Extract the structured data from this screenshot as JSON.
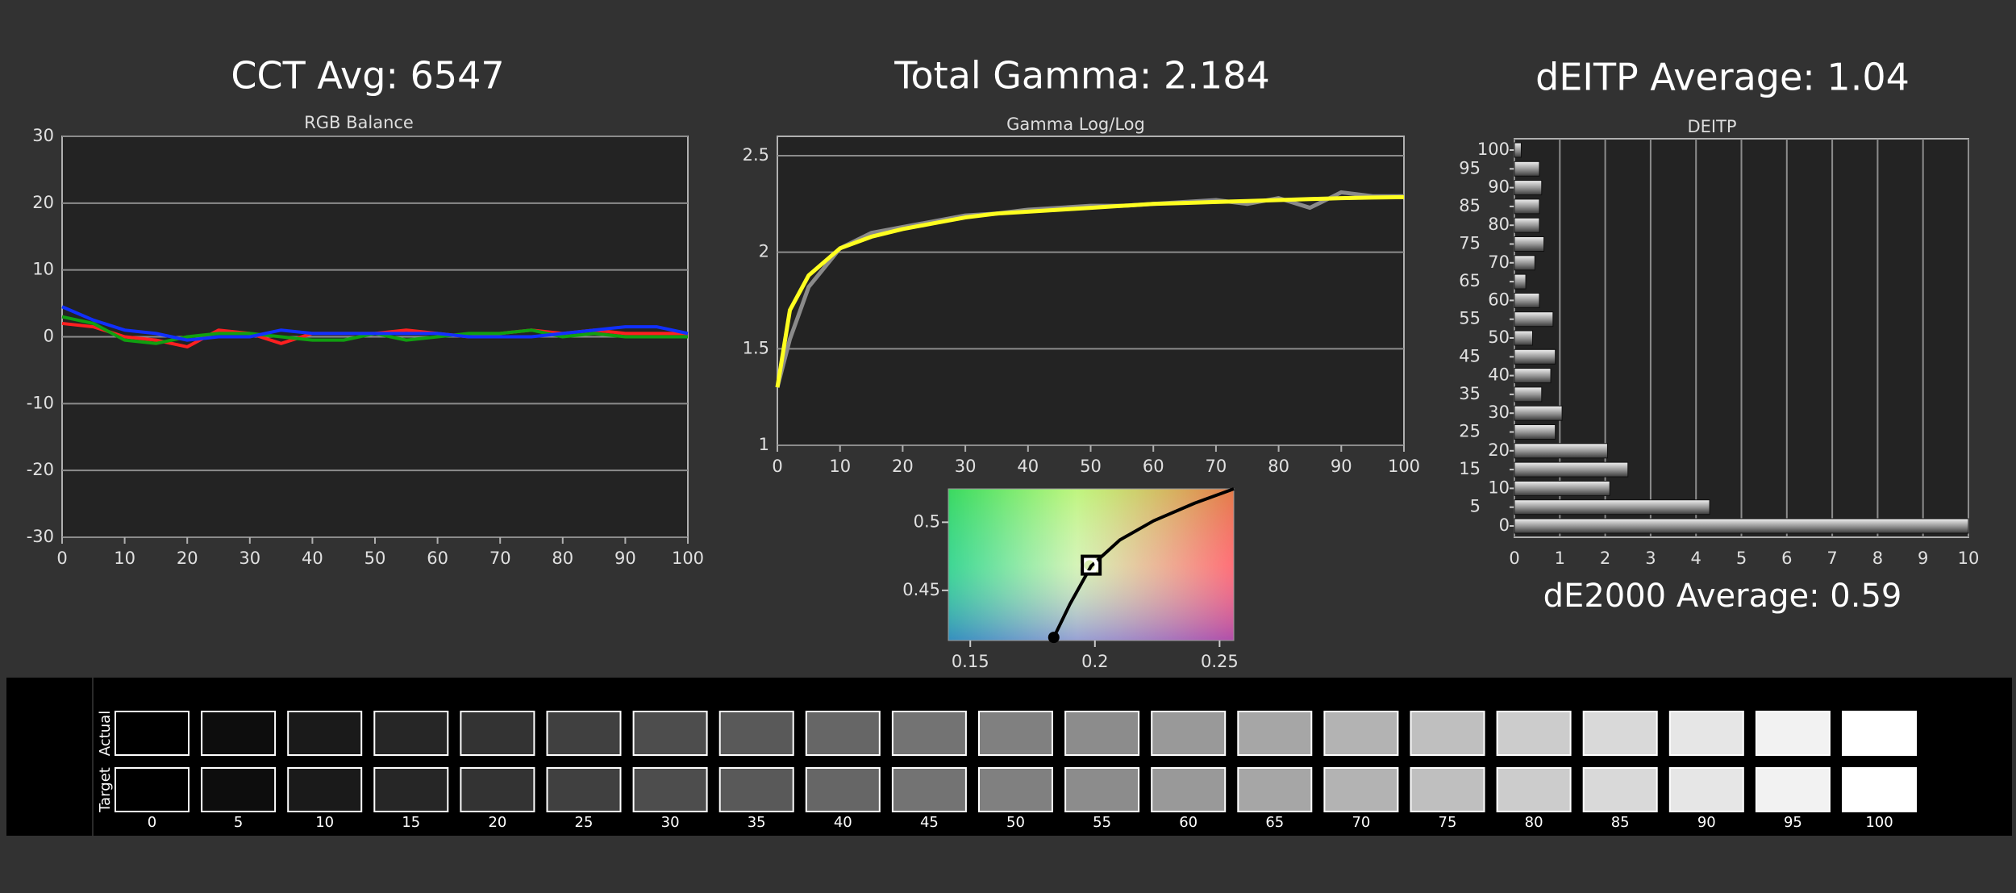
{
  "chart_data": [
    {
      "type": "line",
      "title": "CCT Avg: 6547",
      "subtitle": "RGB Balance",
      "x": [
        0,
        5,
        10,
        15,
        20,
        25,
        30,
        35,
        40,
        45,
        50,
        55,
        60,
        65,
        70,
        75,
        80,
        85,
        90,
        95,
        100
      ],
      "series": [
        {
          "color": "#ff2020",
          "values": [
            2,
            1.5,
            0,
            -0.5,
            -1.5,
            1,
            0.5,
            -1,
            0.5,
            0.5,
            0.5,
            1,
            0.5,
            0,
            0.5,
            1,
            0.5,
            1,
            0.5,
            0.5,
            0.5
          ]
        },
        {
          "color": "#10a010",
          "values": [
            3,
            2,
            -0.5,
            -1,
            0,
            0.5,
            0.5,
            0,
            -0.5,
            -0.5,
            0.5,
            -0.5,
            0,
            0.5,
            0.5,
            1,
            0,
            0.5,
            0,
            0,
            0
          ]
        },
        {
          "color": "#1030ff",
          "values": [
            4.5,
            2.5,
            1,
            0.5,
            -0.5,
            0,
            0,
            1,
            0.5,
            0.5,
            0.5,
            0.5,
            0.5,
            0,
            0,
            0,
            0.5,
            1,
            1.5,
            1.5,
            0.5
          ]
        }
      ],
      "xlim": [
        0,
        100
      ],
      "xticks": [
        0,
        10,
        20,
        30,
        40,
        50,
        60,
        70,
        80,
        90,
        100
      ],
      "ylim": [
        -30,
        30
      ],
      "yticks": [
        -30,
        -20,
        -10,
        0,
        10,
        20,
        30
      ],
      "grid": true
    },
    {
      "type": "line",
      "title": "Total Gamma: 2.184",
      "subtitle": "Gamma Log/Log",
      "x": [
        0,
        2,
        5,
        10,
        15,
        20,
        25,
        30,
        35,
        40,
        45,
        50,
        55,
        60,
        65,
        70,
        75,
        80,
        85,
        90,
        95,
        100
      ],
      "series": [
        {
          "color": "#8a8a8a",
          "values": [
            1.3,
            1.55,
            1.82,
            2.02,
            2.1,
            2.13,
            2.16,
            2.19,
            2.2,
            2.22,
            2.23,
            2.24,
            2.24,
            2.25,
            2.26,
            2.27,
            2.25,
            2.28,
            2.23,
            2.31,
            2.29,
            2.29
          ]
        },
        {
          "color": "#ffff20",
          "values": [
            1.3,
            1.7,
            1.88,
            2.02,
            2.08,
            2.12,
            2.15,
            2.18,
            2.2,
            2.21,
            2.22,
            2.23,
            2.24,
            2.25,
            2.255,
            2.26,
            2.265,
            2.27,
            2.275,
            2.28,
            2.283,
            2.285
          ]
        }
      ],
      "xlim": [
        0,
        100
      ],
      "xticks": [
        0,
        10,
        20,
        30,
        40,
        50,
        60,
        70,
        80,
        90,
        100
      ],
      "ylim": [
        1,
        2.6
      ],
      "yticks": [
        1,
        1.5,
        2,
        2.5
      ],
      "grid": true
    },
    {
      "type": "scatter",
      "series": [
        {
          "color": "#000000",
          "x": [
            0.1835,
            0.19,
            0.1985,
            0.21,
            0.2235,
            0.24,
            0.2557
          ],
          "values": [
            0.4155,
            0.44,
            0.4679,
            0.487,
            0.501,
            0.514,
            0.5245
          ]
        },
        {
          "color": "#ffffff",
          "x": [
            0.1978
          ],
          "values": [
            0.4683
          ]
        },
        {
          "color": "#000000",
          "x": [
            0.1985
          ],
          "values": [
            0.4685
          ]
        }
      ],
      "xlim": [
        0.1412,
        0.2557
      ],
      "xticks": [
        0.15,
        0.2,
        0.25
      ],
      "ylim": [
        0.4132,
        0.5245
      ],
      "yticks": [
        0.45,
        0.5
      ]
    },
    {
      "type": "barh",
      "title": "dEITP Average: 1.04",
      "subtitle": "DEITP",
      "annotation": "dE2000 Average: 0.59",
      "categories": [
        "0",
        "5",
        "10",
        "15",
        "20",
        "25",
        "30",
        "35",
        "40",
        "45",
        "50",
        "55",
        "60",
        "65",
        "70",
        "75",
        "80",
        "85",
        "90",
        "95",
        "100"
      ],
      "values": [
        10,
        4.3,
        2.1,
        2.5,
        2.05,
        0.9,
        1.05,
        0.6,
        0.8,
        0.9,
        0.4,
        0.85,
        0.55,
        0.25,
        0.45,
        0.65,
        0.55,
        0.55,
        0.6,
        0.55,
        0.15
      ],
      "xlim": [
        0,
        10
      ],
      "xticks": [
        0,
        1,
        2,
        3,
        4,
        5,
        6,
        7,
        8,
        9,
        10
      ],
      "grid": true
    }
  ],
  "swatches": {
    "row_labels": [
      "Actual",
      "Target"
    ],
    "categories": [
      "0",
      "5",
      "10",
      "15",
      "20",
      "25",
      "30",
      "35",
      "40",
      "45",
      "50",
      "55",
      "60",
      "65",
      "70",
      "75",
      "80",
      "85",
      "90",
      "95",
      "100"
    ],
    "actual_colors": [
      "#000000",
      "#0d0d0d",
      "#1a1a1a",
      "#262626",
      "#333333",
      "#404040",
      "#4d4d4d",
      "#595959",
      "#666666",
      "#737373",
      "#808080",
      "#8c8c8c",
      "#999999",
      "#a6a6a6",
      "#b3b3b3",
      "#bfbfbf",
      "#cccccc",
      "#d9d9d9",
      "#e6e6e6",
      "#f2f2f2",
      "#ffffff"
    ],
    "target_colors": [
      "#000000",
      "#0d0d0d",
      "#1a1a1a",
      "#262626",
      "#333333",
      "#404040",
      "#4d4d4d",
      "#595959",
      "#666666",
      "#737373",
      "#808080",
      "#8c8c8c",
      "#999999",
      "#a6a6a6",
      "#b3b3b3",
      "#bfbfbf",
      "#cccccc",
      "#d9d9d9",
      "#e6e6e6",
      "#f2f2f2",
      "#ffffff"
    ]
  }
}
